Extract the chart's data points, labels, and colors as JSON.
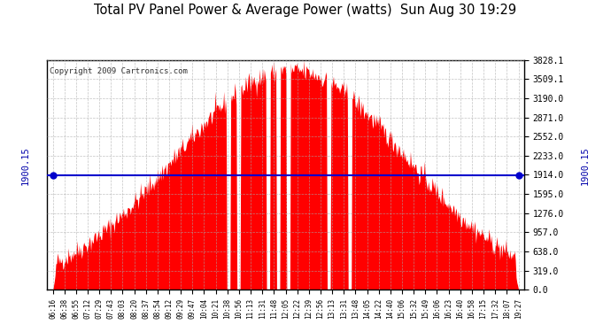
{
  "title": "Total PV Panel Power & Average Power (watts)  Sun Aug 30 19:29",
  "copyright": "Copyright 2009 Cartronics.com",
  "avg_power": 1900.15,
  "y_max": 3828.1,
  "y_ticks": [
    0.0,
    319.0,
    638.0,
    957.0,
    1276.0,
    1595.0,
    1914.0,
    2233.0,
    2552.0,
    2871.0,
    3190.0,
    3509.1,
    3828.1
  ],
  "x_labels": [
    "06:16",
    "06:38",
    "06:55",
    "07:12",
    "07:29",
    "07:43",
    "08:03",
    "08:20",
    "08:37",
    "08:54",
    "09:12",
    "09:29",
    "09:47",
    "10:04",
    "10:21",
    "10:38",
    "10:56",
    "11:13",
    "11:31",
    "11:48",
    "12:05",
    "12:22",
    "12:39",
    "12:56",
    "13:13",
    "13:31",
    "13:48",
    "14:05",
    "14:22",
    "14:40",
    "15:06",
    "15:32",
    "15:49",
    "16:06",
    "16:23",
    "16:40",
    "16:58",
    "17:15",
    "17:32",
    "18:07",
    "19:27"
  ],
  "dip_times_min": [
    675,
    691,
    742,
    759,
    776,
    845,
    880
  ],
  "fill_color": "#FF0000",
  "avg_line_color": "#0000CC",
  "background_color": "#FFFFFF",
  "plot_bg_color": "#FFFFFF",
  "grid_color": "#AAAAAA",
  "avg_label_color": "#0000AA",
  "title_color": "#000000",
  "copyright_color": "#333333"
}
